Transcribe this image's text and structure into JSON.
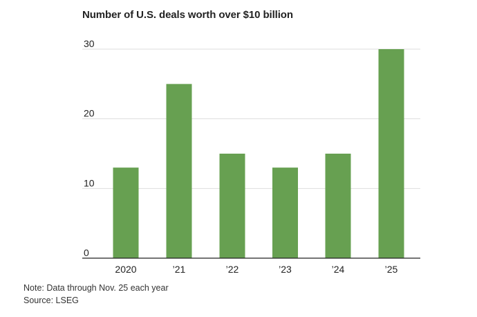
{
  "chart_data": {
    "type": "bar",
    "title": "Number of U.S. deals worth over $10 billion",
    "categories": [
      "2020",
      "’21",
      "’22",
      "’23",
      "’24",
      "’25"
    ],
    "values": [
      13,
      25,
      15,
      13,
      15,
      30
    ],
    "ylim": [
      0,
      30
    ],
    "yticks": [
      "0",
      "10",
      "20",
      "30"
    ],
    "ytick_values": [
      0,
      10,
      20,
      30
    ],
    "grid": true,
    "bar_color": "#67a051",
    "note": "Note: Data through Nov. 25 each year",
    "source": "Source: LSEG"
  }
}
